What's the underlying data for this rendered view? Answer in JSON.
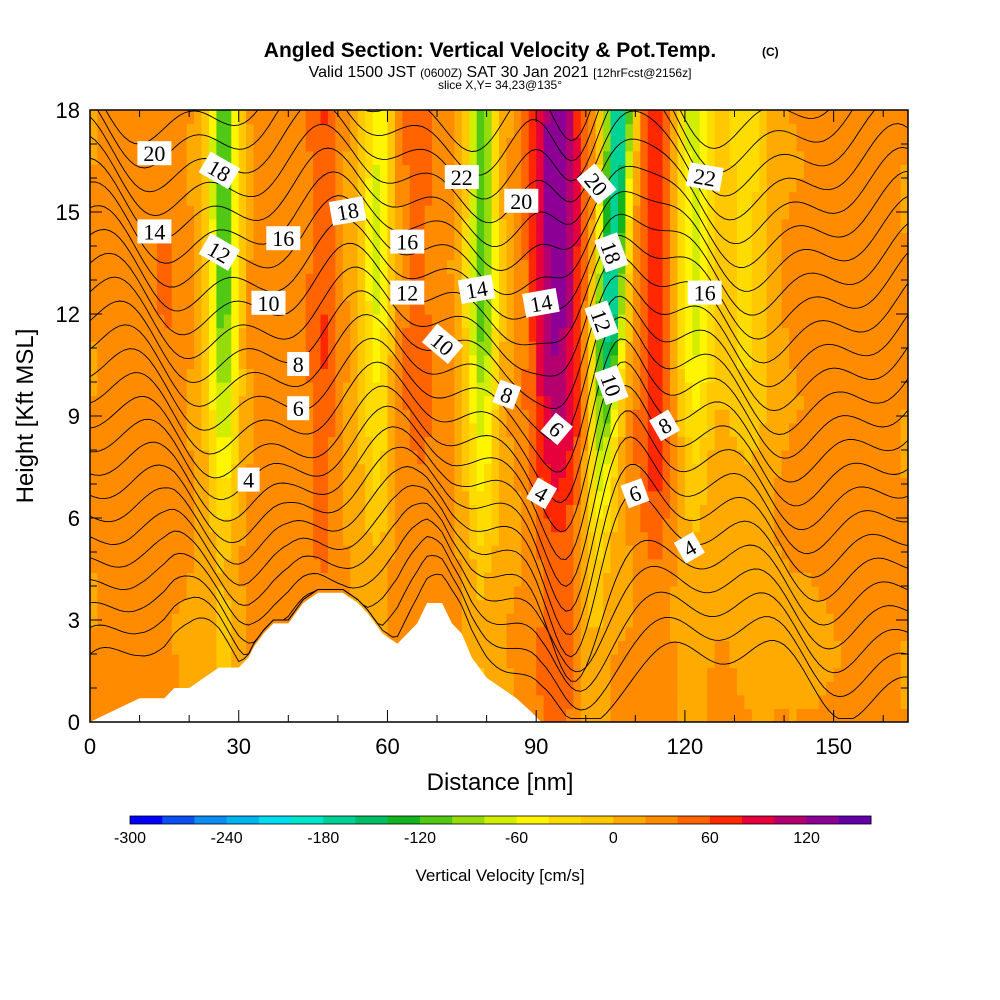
{
  "header": {
    "title": "Angled Section: Vertical Velocity & Pot.Temp.",
    "title_mark": "(C)",
    "valid_prefix": "Valid 1500 JST",
    "valid_utc": "(0600Z)",
    "valid_date": "SAT 30 Jan 2021",
    "forecast": "[12hrFcst@2156z]",
    "slice": "slice X,Y= 34,23@135°"
  },
  "chart_data": {
    "type": "heatmap",
    "title": "Angled Section: Vertical Velocity & Pot.Temp.",
    "xlabel": "Distance [nm]",
    "ylabel": "Height [Kft MSL]",
    "xlim": [
      0,
      165
    ],
    "ylim": [
      0,
      18
    ],
    "x_ticks": [
      0,
      30,
      60,
      90,
      120,
      150
    ],
    "y_ticks": [
      0,
      3,
      6,
      9,
      12,
      15,
      18
    ],
    "grid": false,
    "colorbar": {
      "label": "Vertical Velocity [cm/s]",
      "min": -300,
      "max": 150,
      "step": 20,
      "ticks": [
        -300,
        -240,
        -180,
        -120,
        -60,
        0,
        60,
        120
      ],
      "colors": [
        "#0000ff",
        "#0a50f0",
        "#0a8cf0",
        "#00b4f0",
        "#00dcf0",
        "#00e6c8",
        "#00d296",
        "#00be64",
        "#14b41e",
        "#50c814",
        "#96dc0a",
        "#d2ee00",
        "#fff500",
        "#ffdc00",
        "#ffc800",
        "#ffaa00",
        "#ff8c00",
        "#ff6400",
        "#ff2800",
        "#e6003c",
        "#b4006e",
        "#8c0096",
        "#6400aa"
      ]
    },
    "updraft_bands": [
      {
        "x": 16,
        "w": 4,
        "peak": 40
      },
      {
        "x": 47,
        "w": 3,
        "peak": 60
      },
      {
        "x": 66,
        "w": 4,
        "peak": 40
      },
      {
        "x": 94,
        "w": 5,
        "peak": 130
      },
      {
        "x": 114,
        "w": 4,
        "peak": 80
      },
      {
        "x": 143,
        "w": 6,
        "peak": 30
      }
    ],
    "downdraft_bands": [
      {
        "x": 27,
        "w": 3,
        "peak": -110
      },
      {
        "x": 58,
        "w": 3,
        "peak": -60
      },
      {
        "x": 79,
        "w": 3,
        "peak": -110
      },
      {
        "x": 104,
        "w": 3,
        "peak": -180
      },
      {
        "x": 122,
        "w": 4,
        "peak": -70
      },
      {
        "x": 132,
        "w": 5,
        "peak": -30
      }
    ],
    "terrain": [
      [
        0,
        0
      ],
      [
        10,
        0.7
      ],
      [
        12,
        0.7
      ],
      [
        15,
        0.7
      ],
      [
        17,
        1.0
      ],
      [
        20,
        1.0
      ],
      [
        23,
        1.3
      ],
      [
        26,
        1.6
      ],
      [
        30,
        1.6
      ],
      [
        32,
        1.9
      ],
      [
        33,
        2.2
      ],
      [
        35,
        2.6
      ],
      [
        37,
        2.9
      ],
      [
        40,
        2.9
      ],
      [
        43,
        3.5
      ],
      [
        46,
        3.8
      ],
      [
        48,
        3.8
      ],
      [
        51,
        3.8
      ],
      [
        54,
        3.5
      ],
      [
        56,
        3.2
      ],
      [
        59,
        2.6
      ],
      [
        62,
        2.3
      ],
      [
        64,
        2.6
      ],
      [
        66,
        2.9
      ],
      [
        68,
        3.5
      ],
      [
        71,
        3.5
      ],
      [
        73,
        2.9
      ],
      [
        75,
        2.6
      ],
      [
        77,
        1.9
      ],
      [
        80,
        1.3
      ],
      [
        83,
        1.0
      ],
      [
        86,
        0.7
      ],
      [
        89,
        0.3
      ],
      [
        91,
        0
      ],
      [
        165,
        0
      ]
    ],
    "pot_temp_isentropes": {
      "levels": [
        2,
        3,
        4,
        5,
        6,
        7,
        8,
        9,
        10,
        11,
        12,
        13,
        14,
        15,
        16,
        17,
        18,
        19,
        20,
        21,
        22,
        23,
        24,
        25,
        26
      ],
      "labels": [
        {
          "text": "20",
          "x": 13,
          "h": 16.7,
          "rot": 0
        },
        {
          "text": "18",
          "x": 26,
          "h": 16.2,
          "rot": 30
        },
        {
          "text": "14",
          "x": 13,
          "h": 14.4,
          "rot": 0
        },
        {
          "text": "12",
          "x": 26,
          "h": 13.8,
          "rot": 30
        },
        {
          "text": "16",
          "x": 39,
          "h": 14.2,
          "rot": 0
        },
        {
          "text": "18",
          "x": 52,
          "h": 15.0,
          "rot": -10
        },
        {
          "text": "10",
          "x": 36,
          "h": 12.3,
          "rot": 0
        },
        {
          "text": "8",
          "x": 42,
          "h": 10.5,
          "rot": 0
        },
        {
          "text": "6",
          "x": 42,
          "h": 9.2,
          "rot": 0
        },
        {
          "text": "4",
          "x": 32,
          "h": 7.1,
          "rot": 0
        },
        {
          "text": "22",
          "x": 75,
          "h": 16.0,
          "rot": 0
        },
        {
          "text": "16",
          "x": 64,
          "h": 14.1,
          "rot": 0
        },
        {
          "text": "12",
          "x": 64,
          "h": 12.6,
          "rot": 0
        },
        {
          "text": "14",
          "x": 78,
          "h": 12.7,
          "rot": -10
        },
        {
          "text": "10",
          "x": 71,
          "h": 11.1,
          "rot": 40
        },
        {
          "text": "20",
          "x": 87,
          "h": 15.3,
          "rot": 0
        },
        {
          "text": "14",
          "x": 91,
          "h": 12.3,
          "rot": -10
        },
        {
          "text": "8",
          "x": 84,
          "h": 9.6,
          "rot": 20
        },
        {
          "text": "6",
          "x": 94,
          "h": 8.6,
          "rot": 40
        },
        {
          "text": "4",
          "x": 91,
          "h": 6.7,
          "rot": 30
        },
        {
          "text": "20",
          "x": 102,
          "h": 15.8,
          "rot": 50
        },
        {
          "text": "18",
          "x": 105,
          "h": 13.8,
          "rot": 70
        },
        {
          "text": "12",
          "x": 103,
          "h": 11.8,
          "rot": 70
        },
        {
          "text": "10",
          "x": 105,
          "h": 9.9,
          "rot": 70
        },
        {
          "text": "8",
          "x": 116,
          "h": 8.7,
          "rot": -30
        },
        {
          "text": "6",
          "x": 110,
          "h": 6.7,
          "rot": -20
        },
        {
          "text": "4",
          "x": 121,
          "h": 5.1,
          "rot": -30
        },
        {
          "text": "22",
          "x": 124,
          "h": 16.0,
          "rot": 10
        },
        {
          "text": "16",
          "x": 124,
          "h": 12.6,
          "rot": 0
        }
      ]
    }
  }
}
